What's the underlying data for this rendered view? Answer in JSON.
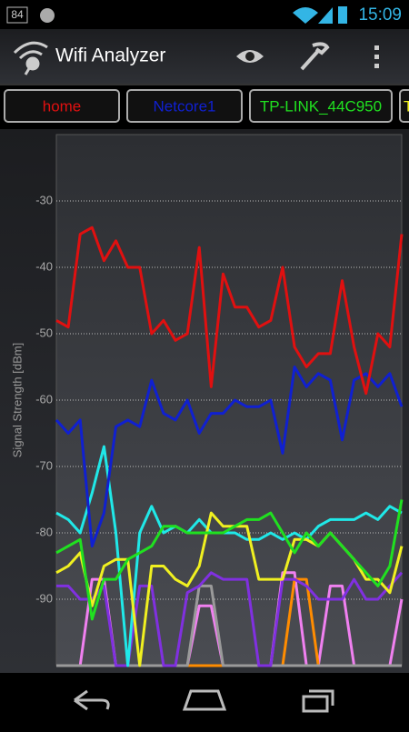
{
  "status_bar": {
    "notification": "84",
    "time": "15:09"
  },
  "app_bar": {
    "title": "Wifi Analyzer"
  },
  "chart_data": {
    "type": "line",
    "ylabel": "Signal Strength [dBm]",
    "ylim": [
      -100,
      -20
    ],
    "yticks": [
      -30,
      -40,
      -50,
      -60,
      -70,
      -80,
      -90
    ],
    "grid": true,
    "series": [
      {
        "name": "home",
        "color": "#e01010",
        "values": [
          -48,
          -49,
          -35,
          -34,
          -39,
          -36,
          -40,
          -40,
          -50,
          -48,
          -51,
          -50,
          -37,
          -58,
          -41,
          -46,
          -46,
          -49,
          -48,
          -40,
          -52,
          -55,
          -53,
          -53,
          -42,
          -52,
          -59,
          -50,
          -52,
          -35
        ]
      },
      {
        "name": "Netcore1",
        "color": "#1020d0",
        "values": [
          -63,
          -65,
          -63,
          -82,
          -77,
          -64,
          -63,
          -64,
          -57,
          -62,
          -63,
          -60,
          -65,
          -62,
          -62,
          -60,
          -61,
          -61,
          -60,
          -68,
          -55,
          -58,
          -56,
          -57,
          -66,
          -57,
          -56,
          -58,
          -56,
          -61
        ]
      },
      {
        "name": "TP-LINK_44C950",
        "color": "#20e020",
        "values": [
          -83,
          -82,
          -81,
          -93,
          -87,
          -87,
          -84,
          -83,
          -82,
          -79,
          -79,
          -80,
          -80,
          -80,
          -80,
          -79,
          -78,
          -78,
          -77,
          -80,
          -83,
          -80,
          -82,
          -80,
          -82,
          -84,
          -86,
          -88,
          -85,
          -75
        ]
      },
      {
        "name": "T",
        "color": "#f0f020",
        "values": [
          -86,
          -85,
          -83,
          -91,
          -85,
          -84,
          -84,
          -100,
          -85,
          -85,
          -87,
          -88,
          -85,
          -77,
          -79,
          -79,
          -79,
          -87,
          -87,
          -87,
          -81,
          -81,
          -82,
          -80,
          -82,
          -84,
          -87,
          -87,
          -89,
          -82
        ]
      },
      {
        "color": "#20e8e8",
        "values": [
          -77,
          -78,
          -80,
          -74,
          -67,
          -80,
          -100,
          -80,
          -76,
          -80,
          -79,
          -80,
          -78,
          -80,
          -80,
          -80,
          -81,
          -81,
          -80,
          -81,
          -80,
          -81,
          -79,
          -78,
          -78,
          -78,
          -77,
          -78,
          -76,
          -77
        ]
      },
      {
        "color": "#8030e0",
        "values": [
          -88,
          -88,
          -90,
          -90,
          -88,
          -100,
          -100,
          -88,
          -88,
          -100,
          -100,
          -89,
          -88,
          -86,
          -87,
          -87,
          -87,
          -100,
          -100,
          -87,
          -87,
          -88,
          -90,
          -90,
          -90,
          -87,
          -90,
          -90,
          -88,
          -86
        ]
      },
      {
        "color": "#9a9a9a",
        "values": [
          -100,
          -100,
          -100,
          -100,
          -100,
          -100,
          -100,
          -100,
          -100,
          -100,
          -100,
          -100,
          -88,
          -88,
          -100,
          -100,
          -100,
          -100,
          -100,
          -100,
          -100,
          -100,
          -100,
          -100,
          -100,
          -100,
          -100,
          -100,
          -100,
          -100
        ]
      },
      {
        "color": "#ff8c00",
        "values": [
          -100,
          -100,
          -100,
          -100,
          -100,
          -100,
          -100,
          -100,
          -100,
          -100,
          -100,
          -100,
          -100,
          -100,
          -100,
          -100,
          -100,
          -100,
          -100,
          -100,
          -87,
          -87,
          -100,
          -100,
          -100,
          -100,
          -100,
          -100,
          -100,
          -100
        ]
      },
      {
        "color": "#f080f0",
        "values": [
          -100,
          -100,
          -100,
          -87,
          -87,
          -100,
          -100,
          -100,
          -100,
          -100,
          -100,
          -100,
          -91,
          -91,
          -100,
          -100,
          -100,
          -100,
          -100,
          -86,
          -86,
          -100,
          -100,
          -88,
          -88,
          -100,
          -100,
          -100,
          -100,
          -90
        ]
      }
    ]
  }
}
